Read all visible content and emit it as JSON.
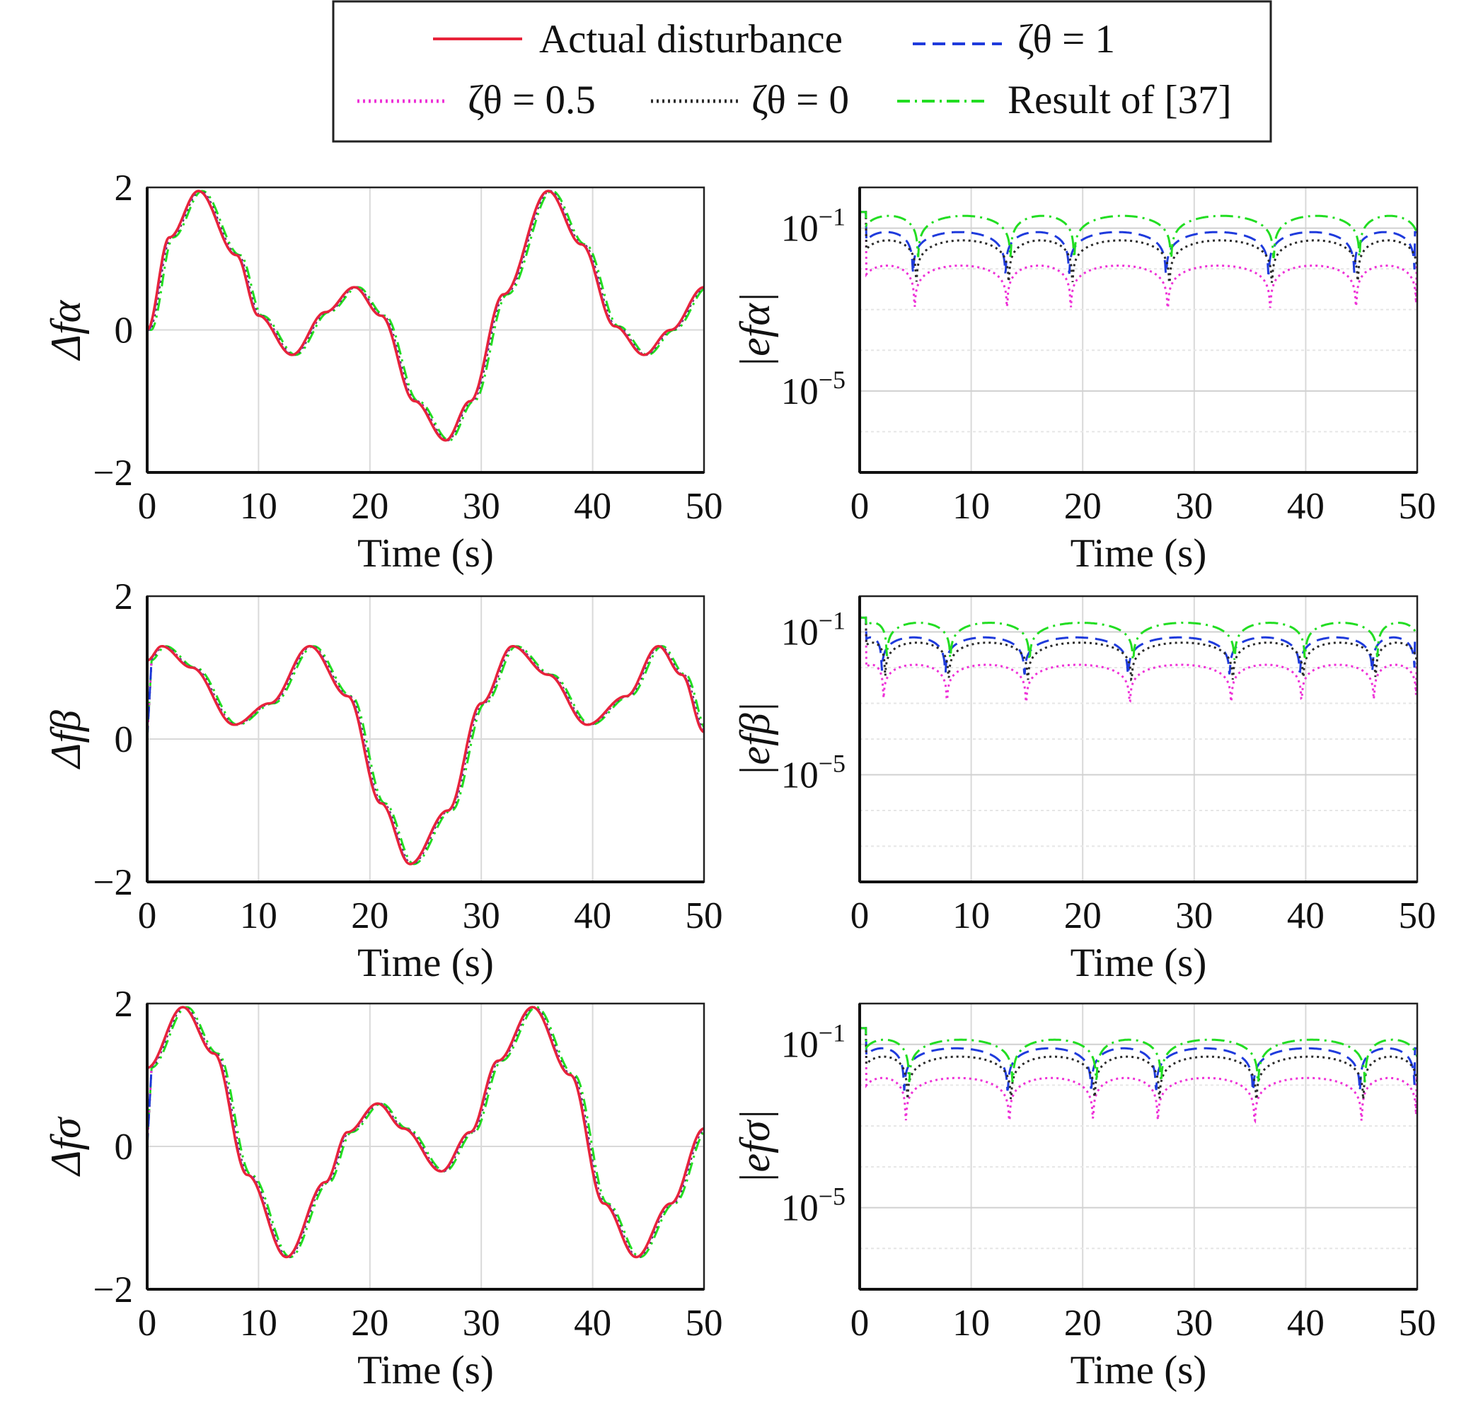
{
  "legend": {
    "entries": [
      {
        "key": "actual",
        "label": "Actual disturbance",
        "color": "#e8233a",
        "dash": "solid"
      },
      {
        "key": "z1",
        "label": "ζθ = 1",
        "color": "#1f3bdc",
        "dash": "dashed"
      },
      {
        "key": "z05",
        "label": "ζθ = 0.5",
        "color": "#ee31d7",
        "dash": "dotted"
      },
      {
        "key": "z0",
        "label": "ζθ = 0",
        "color": "#2b2b2b",
        "dash": "dotted"
      },
      {
        "key": "ref",
        "label": "Result of [37]",
        "color": "#22dd22",
        "dash": "dashdot"
      }
    ]
  },
  "chart_data": [
    {
      "id": "fa",
      "type": "line",
      "title": "",
      "xlabel": "Time (s)",
      "ylabel": "Δfα",
      "xlim": [
        0,
        50
      ],
      "ylim": [
        -2,
        2
      ],
      "xticks": [
        "0",
        "10",
        "20",
        "30",
        "40",
        "50"
      ],
      "yticks": [
        "2",
        "0",
        "−2"
      ],
      "grid": true,
      "series": [
        {
          "name": "Actual disturbance",
          "x": [
            0,
            2,
            4.6,
            8,
            10,
            13,
            16,
            18.6,
            21,
            24,
            26.8,
            29,
            32,
            36,
            39,
            42,
            44.6,
            47,
            50
          ],
          "y": [
            0,
            1.3,
            1.95,
            1.05,
            0.2,
            -0.35,
            0.25,
            0.6,
            0.2,
            -1.0,
            -1.55,
            -1.0,
            0.5,
            1.95,
            1.2,
            0.05,
            -0.35,
            0.0,
            0.6
          ]
        }
      ]
    },
    {
      "id": "efa",
      "type": "line",
      "title": "",
      "xlabel": "Time (s)",
      "ylabel": "|efα|",
      "yscale": "log",
      "xlim": [
        0,
        50
      ],
      "ylim": [
        1e-07,
        1
      ],
      "xticks": [
        "0",
        "10",
        "20",
        "30",
        "40",
        "50"
      ],
      "yticks": [
        "10^−1",
        "10^−5"
      ],
      "grid": true,
      "zeros": [
        5.0,
        13.3,
        19.0,
        27.7,
        36.9,
        44.6
      ],
      "series": [
        {
          "name": "ζθ = 1",
          "peak": 0.08
        },
        {
          "name": "ζθ = 0.5",
          "peak": 0.012
        },
        {
          "name": "ζθ = 0",
          "peak": 0.05
        },
        {
          "name": "Result of [37]",
          "peak": 0.2
        }
      ]
    },
    {
      "id": "fb",
      "type": "line",
      "title": "",
      "xlabel": "Time (s)",
      "ylabel": "Δfβ",
      "xlim": [
        0,
        50
      ],
      "ylim": [
        -2,
        2
      ],
      "xticks": [
        "0",
        "10",
        "20",
        "30",
        "40",
        "50"
      ],
      "yticks": [
        "2",
        "0",
        "−2"
      ],
      "grid": true,
      "series": [
        {
          "name": "Actual disturbance",
          "x": [
            0,
            1.3,
            4,
            7.8,
            11,
            14.6,
            18,
            21,
            23.6,
            27,
            30,
            32.8,
            36,
            39.5,
            43,
            45.9,
            48,
            50
          ],
          "y": [
            1.1,
            1.3,
            1.0,
            0.2,
            0.5,
            1.3,
            0.6,
            -0.9,
            -1.75,
            -1.0,
            0.5,
            1.3,
            0.9,
            0.2,
            0.6,
            1.3,
            0.9,
            0.1
          ]
        }
      ]
    },
    {
      "id": "efb",
      "type": "line",
      "title": "",
      "xlabel": "Time (s)",
      "ylabel": "|efβ|",
      "yscale": "log",
      "xlim": [
        0,
        50
      ],
      "ylim": [
        1e-08,
        1
      ],
      "xticks": [
        "0",
        "10",
        "20",
        "30",
        "40",
        "50"
      ],
      "yticks": [
        "10^−1",
        "10^−5"
      ],
      "grid": true,
      "zeros": [
        2.2,
        7.9,
        15.0,
        24.3,
        33.4,
        39.7,
        46.2
      ],
      "series": [
        {
          "name": "ζθ = 1",
          "peak": 0.07
        },
        {
          "name": "ζθ = 0.5",
          "peak": 0.012
        },
        {
          "name": "ζθ = 0",
          "peak": 0.05
        },
        {
          "name": "Result of [37]",
          "peak": 0.18
        }
      ]
    },
    {
      "id": "fs",
      "type": "line",
      "title": "",
      "xlabel": "Time (s)",
      "ylabel": "Δfσ",
      "xlim": [
        0,
        50
      ],
      "ylim": [
        -2,
        2
      ],
      "xticks": [
        "0",
        "10",
        "20",
        "30",
        "40",
        "50"
      ],
      "yticks": [
        "2",
        "0",
        "−2"
      ],
      "grid": true,
      "series": [
        {
          "name": "Actual disturbance",
          "x": [
            0,
            3.2,
            6,
            9,
            12.5,
            16,
            18,
            20.7,
            23,
            26.4,
            29,
            31.5,
            34.6,
            38,
            41,
            43.9,
            47,
            50
          ],
          "y": [
            1.1,
            1.95,
            1.3,
            -0.4,
            -1.55,
            -0.5,
            0.2,
            0.6,
            0.25,
            -0.35,
            0.2,
            1.2,
            1.95,
            1.0,
            -0.8,
            -1.55,
            -0.8,
            0.25
          ]
        }
      ]
    },
    {
      "id": "efs",
      "type": "line",
      "title": "",
      "xlabel": "Time (s)",
      "ylabel": "|efσ|",
      "yscale": "log",
      "xlim": [
        0,
        50
      ],
      "ylim": [
        1e-07,
        1
      ],
      "xticks": [
        "0",
        "10",
        "20",
        "30",
        "40",
        "50"
      ],
      "yticks": [
        "10^−1",
        "10^−5"
      ],
      "grid": true,
      "zeros": [
        4.2,
        13.5,
        21.0,
        26.8,
        35.5,
        45.1
      ],
      "series": [
        {
          "name": "ζθ = 1",
          "peak": 0.08
        },
        {
          "name": "ζθ = 0.5",
          "peak": 0.015
        },
        {
          "name": "ζθ = 0",
          "peak": 0.05
        },
        {
          "name": "Result of [37]",
          "peak": 0.13
        }
      ]
    }
  ]
}
